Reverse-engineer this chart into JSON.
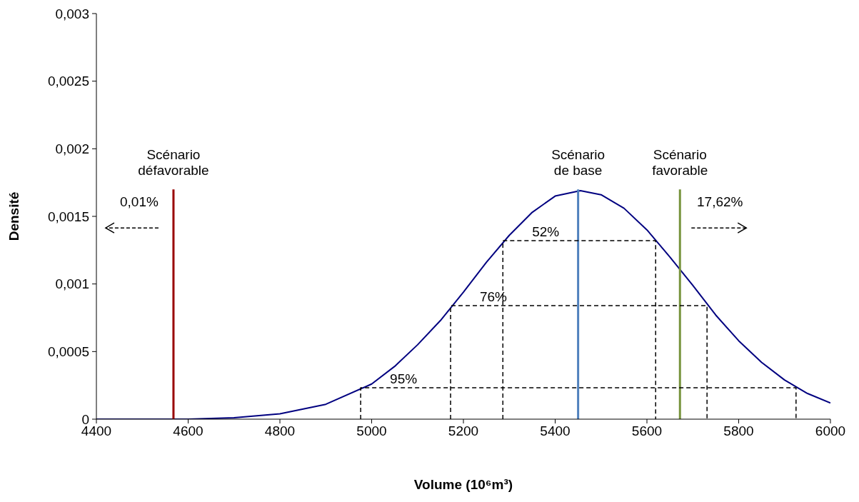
{
  "chart_data": {
    "type": "line",
    "xlabel": "Volume (10⁶m³)",
    "ylabel": "Densité",
    "xlim": [
      4400,
      6000
    ],
    "xticks": [
      4400,
      4600,
      4800,
      5000,
      5200,
      5400,
      5600,
      5800,
      6000
    ],
    "ylim": [
      0,
      0.003
    ],
    "yticks": [
      {
        "value": 0,
        "label": "0"
      },
      {
        "value": 0.0005,
        "label": "0,0005"
      },
      {
        "value": 0.001,
        "label": "0,001"
      },
      {
        "value": 0.0015,
        "label": "0,0015"
      },
      {
        "value": 0.002,
        "label": "0,002"
      },
      {
        "value": 0.0025,
        "label": "0,0025"
      },
      {
        "value": 0.003,
        "label": "0,003"
      }
    ],
    "grid": false,
    "marker": "none",
    "series": [
      {
        "color": "#000080",
        "line_style": "solid",
        "x": [
          4400,
          4600,
          4700,
          4800,
          4900,
          5000,
          5050,
          5100,
          5150,
          5200,
          5250,
          5300,
          5350,
          5400,
          5455,
          5500,
          5550,
          5600,
          5650,
          5700,
          5750,
          5800,
          5850,
          5900,
          5950,
          6000
        ],
        "values": [
          0,
          0,
          1e-05,
          4e-05,
          0.00011,
          0.00026,
          0.00039,
          0.00055,
          0.00073,
          0.00094,
          0.00116,
          0.00136,
          0.00153,
          0.00165,
          0.00169,
          0.00166,
          0.00156,
          0.0014,
          0.0012,
          0.00099,
          0.00077,
          0.00058,
          0.00042,
          0.00029,
          0.00019,
          0.00012
        ]
      },
      {
        "name": "Scénario défavorable",
        "color": "#990000",
        "line_style": "solid",
        "x": [
          4568,
          4568
        ],
        "values": [
          0,
          0.0017
        ]
      },
      {
        "name": "Scénario de base",
        "color": "#4f81bd",
        "line_style": "solid",
        "x": [
          5450,
          5450
        ],
        "values": [
          0,
          0.0017
        ]
      },
      {
        "name": "Scénario favorable",
        "color": "#77933c",
        "line_style": "solid",
        "x": [
          5672,
          5672
        ],
        "values": [
          0,
          0.0017
        ]
      },
      {
        "name": "52%",
        "color": "#000000",
        "line_style": "dashed",
        "x": [
          5286,
          5286,
          5619,
          5619
        ],
        "values": [
          0,
          0.00132,
          0.00132,
          0
        ]
      },
      {
        "name": "76%",
        "color": "#000000",
        "line_style": "dashed",
        "x": [
          5172,
          5172,
          5731,
          5731
        ],
        "values": [
          0,
          0.00084,
          0.00084,
          0
        ]
      },
      {
        "name": "95%",
        "color": "#000000",
        "line_style": "dashed",
        "x": [
          4976,
          4976,
          5925,
          5925
        ],
        "values": [
          0,
          0.000232,
          0.000232,
          0
        ]
      }
    ],
    "annotations": [
      "0,01%",
      "17,62%"
    ]
  }
}
